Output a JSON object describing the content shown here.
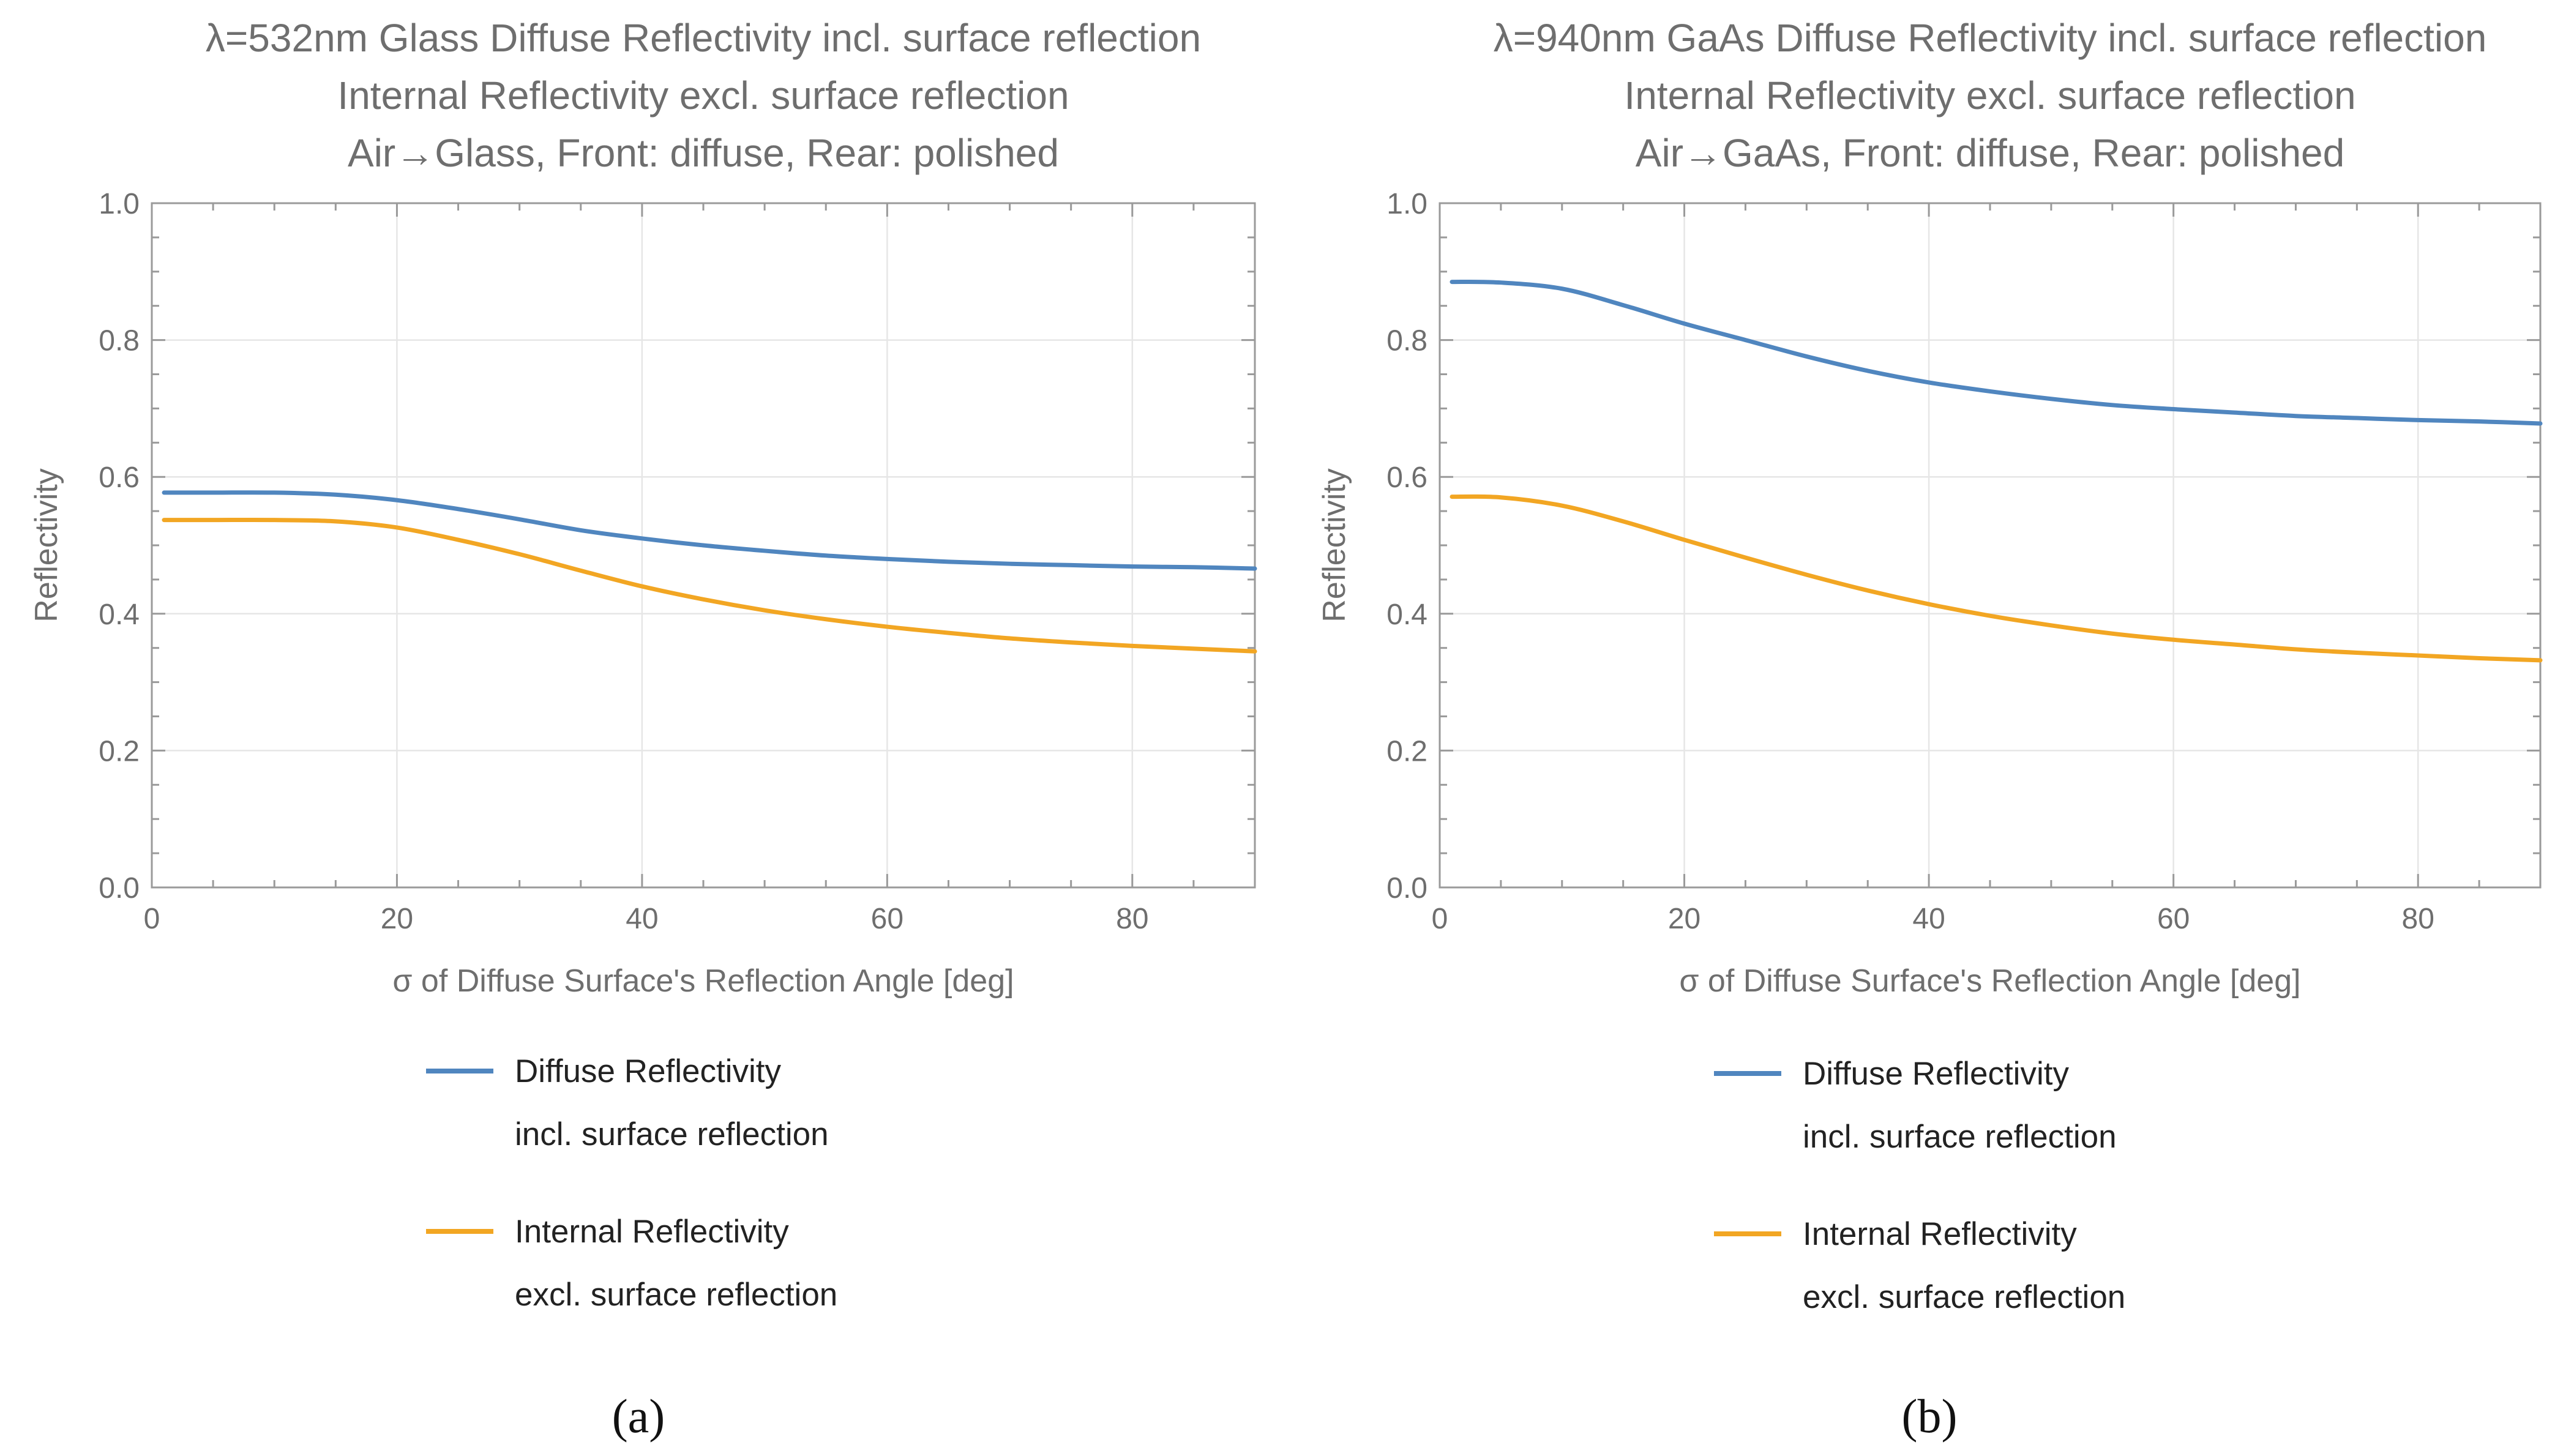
{
  "chart_data": [
    {
      "type": "line",
      "panel": "a",
      "title_lines": [
        "λ=532nm Glass Diffuse Reflectivity incl. surface reflection",
        "Internal Reflectivity excl. surface reflection",
        "Air→Glass, Front: diffuse, Rear: polished"
      ],
      "xlabel": "σ of Diffuse Surface's Reflection Angle [deg]",
      "ylabel": "Reflectivity",
      "xlim": [
        0,
        90
      ],
      "ylim": [
        0,
        1
      ],
      "x_ticks": [
        0,
        20,
        40,
        60,
        80
      ],
      "y_ticks": [
        "0.0",
        "0.2",
        "0.4",
        "0.6",
        "0.8",
        "1.0"
      ],
      "x": [
        1,
        5,
        10,
        15,
        20,
        25,
        30,
        35,
        40,
        45,
        50,
        55,
        60,
        65,
        70,
        75,
        80,
        85,
        90
      ],
      "series": [
        {
          "name": "Diffuse Reflectivity incl. surface reflection",
          "legend_lines": [
            "Diffuse Reflectivity",
            "incl. surface reflection"
          ],
          "color": "#5086bf",
          "values": [
            0.577,
            0.577,
            0.577,
            0.574,
            0.566,
            0.553,
            0.538,
            0.522,
            0.51,
            0.5,
            0.492,
            0.485,
            0.48,
            0.476,
            0.473,
            0.471,
            0.469,
            0.468,
            0.466
          ]
        },
        {
          "name": "Internal Reflectivity excl. surface reflection",
          "legend_lines": [
            "Internal Reflectivity",
            "excl. surface reflection"
          ],
          "color": "#f2a623",
          "values": [
            0.537,
            0.537,
            0.537,
            0.535,
            0.526,
            0.508,
            0.487,
            0.463,
            0.44,
            0.421,
            0.405,
            0.392,
            0.381,
            0.372,
            0.364,
            0.358,
            0.353,
            0.349,
            0.345
          ]
        }
      ],
      "caption": "(a)"
    },
    {
      "type": "line",
      "panel": "b",
      "title_lines": [
        "λ=940nm GaAs Diffuse Reflectivity incl. surface reflection",
        "Internal Reflectivity excl. surface reflection",
        "Air→GaAs, Front: diffuse, Rear: polished"
      ],
      "xlabel": "σ of Diffuse Surface's Reflection Angle [deg]",
      "ylabel": "Reflectivity",
      "xlim": [
        0,
        90
      ],
      "ylim": [
        0,
        1
      ],
      "x_ticks": [
        0,
        20,
        40,
        60,
        80
      ],
      "y_ticks": [
        "0.0",
        "0.2",
        "0.4",
        "0.6",
        "0.8",
        "1.0"
      ],
      "x": [
        1,
        5,
        10,
        15,
        20,
        25,
        30,
        35,
        40,
        45,
        50,
        55,
        60,
        65,
        70,
        75,
        80,
        85,
        90
      ],
      "series": [
        {
          "name": "Diffuse Reflectivity incl. surface reflection",
          "legend_lines": [
            "Diffuse Reflectivity",
            "incl. surface reflection"
          ],
          "color": "#5086bf",
          "values": [
            0.885,
            0.884,
            0.875,
            0.851,
            0.824,
            0.8,
            0.776,
            0.755,
            0.738,
            0.725,
            0.714,
            0.705,
            0.699,
            0.694,
            0.689,
            0.686,
            0.683,
            0.681,
            0.678
          ]
        },
        {
          "name": "Internal Reflectivity excl. surface reflection",
          "legend_lines": [
            "Internal Reflectivity",
            "excl. surface reflection"
          ],
          "color": "#f2a623",
          "values": [
            0.571,
            0.57,
            0.558,
            0.535,
            0.508,
            0.482,
            0.457,
            0.434,
            0.414,
            0.397,
            0.383,
            0.371,
            0.362,
            0.355,
            0.348,
            0.343,
            0.339,
            0.335,
            0.332
          ]
        }
      ],
      "caption": "(b)"
    }
  ]
}
